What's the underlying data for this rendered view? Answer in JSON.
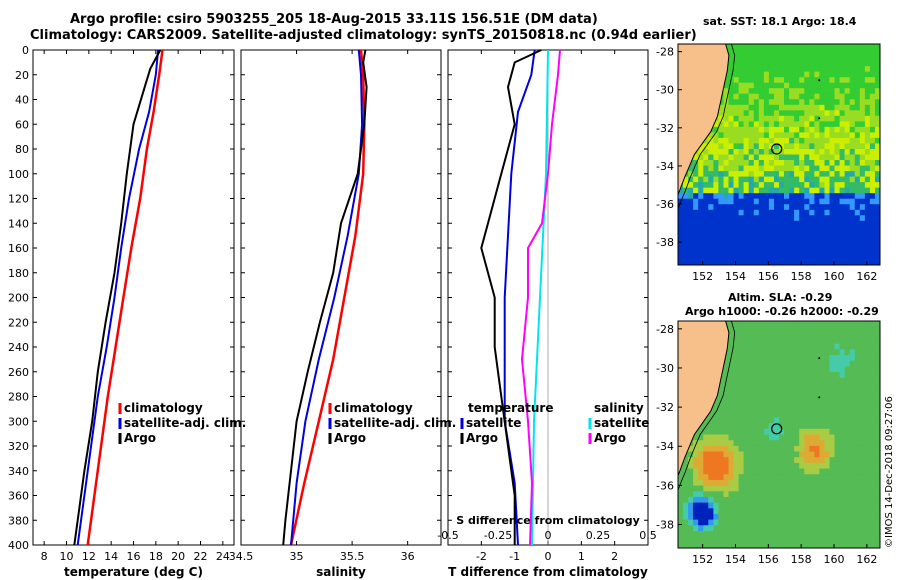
{
  "titles": {
    "line1": "Argo profile: csiro 5903255_205 18-Aug-2015 33.11S 156.51E (DM data)",
    "line2": "Climatology: CARS2009. Satellite-adjusted climatology: synTS_20150818.nc (0.94d earlier)",
    "sst_title": "sat. SST: 18.1 Argo: 18.4",
    "sla_title1": "Altim. SLA: -0.29",
    "sla_title2": "Argo h1000: -0.26 h2000: -0.29",
    "credit": "©IMOS 14-Dec-2018 09:27:06"
  },
  "colors": {
    "climatology": "#ff0000",
    "satellite": "#0000dd",
    "argo": "#000000",
    "s_satellite": "#00e5ee",
    "s_argo": "#ff00ff",
    "land": "#f7c08a"
  },
  "chart_data": [
    {
      "type": "line",
      "id": "temperature",
      "xlabel": "temperature (deg C)",
      "ylabel": "",
      "xlim": [
        7,
        25
      ],
      "ylim": [
        400,
        0
      ],
      "xticks": [
        8,
        10,
        12,
        14,
        16,
        18,
        20,
        22,
        24
      ],
      "yticks": [
        0,
        20,
        40,
        60,
        80,
        100,
        120,
        140,
        160,
        180,
        200,
        220,
        240,
        260,
        280,
        300,
        320,
        340,
        360,
        380,
        400
      ],
      "legend": [
        "climatology",
        "satellite-adj. clim.",
        "Argo"
      ],
      "series": [
        {
          "name": "climatology",
          "color": "#ff0000",
          "depth": [
            0,
            20,
            50,
            80,
            120,
            160,
            200,
            240,
            280,
            320,
            360,
            400
          ],
          "values": [
            18.6,
            18.3,
            17.8,
            17.2,
            16.6,
            15.8,
            15.1,
            14.4,
            13.7,
            13.1,
            12.5,
            11.9
          ]
        },
        {
          "name": "satellite-adj. clim.",
          "color": "#0000dd",
          "depth": [
            0,
            20,
            50,
            80,
            120,
            160,
            200,
            240,
            280,
            320,
            360,
            400
          ],
          "values": [
            18.2,
            18.0,
            17.4,
            16.5,
            15.6,
            14.9,
            14.3,
            13.6,
            12.8,
            12.2,
            11.6,
            11.0
          ]
        },
        {
          "name": "Argo",
          "color": "#000000",
          "depth": [
            0,
            15,
            30,
            60,
            100,
            140,
            180,
            220,
            260,
            300,
            340,
            380,
            400
          ],
          "values": [
            18.4,
            17.5,
            17.0,
            16.0,
            15.4,
            14.9,
            14.3,
            13.5,
            12.8,
            12.3,
            11.6,
            11.0,
            10.7
          ]
        }
      ]
    },
    {
      "type": "line",
      "id": "salinity",
      "xlabel": "salinity",
      "ylabel": "",
      "xlim": [
        34.5,
        36.3
      ],
      "ylim": [
        400,
        0
      ],
      "xticks": [
        34.5,
        35,
        35.5,
        36
      ],
      "legend": [
        "climatology",
        "satellite-adj. clim.",
        "Argo"
      ],
      "series": [
        {
          "name": "climatology",
          "color": "#ff0000",
          "depth": [
            0,
            20,
            60,
            100,
            150,
            200,
            250,
            300,
            350,
            400
          ],
          "values": [
            35.58,
            35.6,
            35.61,
            35.6,
            35.53,
            35.43,
            35.33,
            35.2,
            35.07,
            34.95
          ]
        },
        {
          "name": "satellite-adj. clim.",
          "color": "#0000dd",
          "depth": [
            0,
            20,
            60,
            100,
            150,
            200,
            250,
            300,
            350,
            400
          ],
          "values": [
            35.56,
            35.58,
            35.59,
            35.56,
            35.46,
            35.34,
            35.2,
            35.08,
            35.0,
            34.95
          ]
        },
        {
          "name": "Argo",
          "color": "#000000",
          "depth": [
            0,
            10,
            30,
            60,
            100,
            140,
            180,
            220,
            260,
            300,
            340,
            380,
            400
          ],
          "values": [
            35.62,
            35.6,
            35.63,
            35.61,
            35.55,
            35.4,
            35.33,
            35.21,
            35.1,
            35.0,
            34.95,
            34.9,
            34.88
          ]
        }
      ]
    },
    {
      "type": "line",
      "id": "difference",
      "xlabel": "T difference from climatology",
      "xlabel2": "S difference from climatology",
      "xlim": [
        -3,
        3
      ],
      "ylim": [
        400,
        0
      ],
      "xticks": [
        -2,
        -1,
        0,
        1,
        2
      ],
      "s_ticks": [
        -0.5,
        -0.25,
        0,
        0.25,
        0.5
      ],
      "legend_t_title": "temperature",
      "legend_s_title": "salinity",
      "legend": [
        "satellite",
        "Argo"
      ],
      "series": [
        {
          "name": "T satellite",
          "color": "#0000dd",
          "depth": [
            0,
            20,
            50,
            100,
            150,
            200,
            250,
            300,
            350,
            400
          ],
          "values": [
            -0.4,
            -0.5,
            -0.9,
            -1.1,
            -1.2,
            -1.3,
            -1.3,
            -1.3,
            -1.0,
            -0.9
          ]
        },
        {
          "name": "T Argo",
          "color": "#000000",
          "depth": [
            0,
            10,
            30,
            60,
            100,
            140,
            160,
            200,
            240,
            280,
            320,
            360,
            400
          ],
          "values": [
            -0.2,
            -1.0,
            -1.2,
            -1.0,
            -1.4,
            -1.8,
            -2.0,
            -1.6,
            -1.6,
            -1.4,
            -1.2,
            -1.0,
            -1.0
          ]
        },
        {
          "name": "S satellite",
          "color": "#00e5ee",
          "depth": [
            0,
            100,
            200,
            300,
            400
          ],
          "values": [
            0.0,
            -0.01,
            -0.04,
            -0.07,
            -0.08
          ]
        },
        {
          "name": "S Argo",
          "color": "#ff00ff",
          "depth": [
            0,
            20,
            60,
            100,
            140,
            160,
            200,
            250,
            300,
            350,
            400
          ],
          "values": [
            0.06,
            0.05,
            0.02,
            0.0,
            -0.03,
            -0.1,
            -0.1,
            -0.13,
            -0.1,
            -0.08,
            -0.09
          ]
        }
      ]
    },
    {
      "type": "heatmap",
      "id": "sst-map",
      "title": "sat. SST: 18.1 Argo: 18.4",
      "xticks": [
        152,
        154,
        156,
        158,
        160,
        162
      ],
      "yticks": [
        -28,
        -30,
        -32,
        -34,
        -36,
        -38
      ],
      "xlim": [
        150.5,
        162.8
      ],
      "ylim": [
        -39.2,
        -27.6
      ],
      "marker": {
        "lon": 156.51,
        "lat": -33.11
      }
    },
    {
      "type": "heatmap",
      "id": "sla-map",
      "title": "Altim. SLA: -0.29",
      "xticks": [
        152,
        154,
        156,
        158,
        160,
        162
      ],
      "yticks": [
        -28,
        -30,
        -32,
        -34,
        -36,
        -38
      ],
      "xlim": [
        150.5,
        162.8
      ],
      "ylim": [
        -39.2,
        -27.6
      ],
      "marker": {
        "lon": 156.51,
        "lat": -33.11
      }
    }
  ]
}
